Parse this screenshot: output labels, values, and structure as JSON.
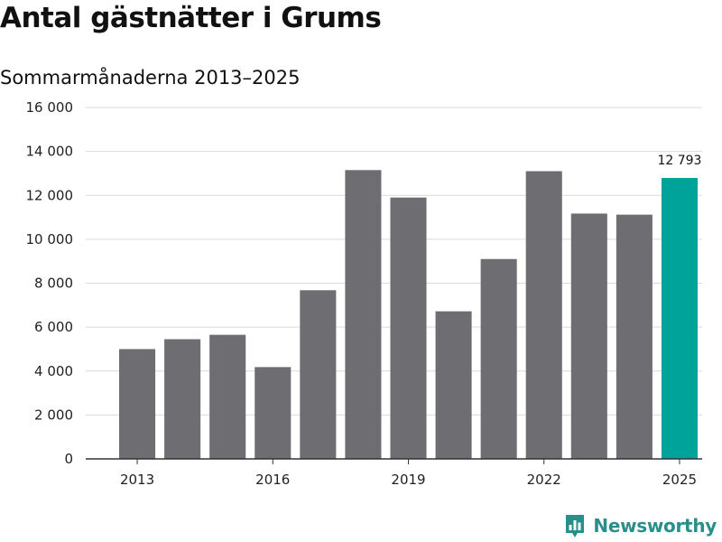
{
  "title": "Antal gästnätter i Grums",
  "subtitle": "Sommarmånaderna 2013–2025",
  "brand": "Newsworthy",
  "colors": {
    "bar": "#6e6d72",
    "highlight": "#00a39a",
    "grid": "#d9d9d9",
    "axis": "#333333",
    "brand": "#2a8f8a"
  },
  "chart_data": {
    "type": "bar",
    "title": "Antal gästnätter i Grums",
    "subtitle": "Sommarmånaderna 2013–2025",
    "categories": [
      "2013",
      "2014",
      "2015",
      "2016",
      "2017",
      "2018",
      "2019",
      "2020",
      "2021",
      "2022",
      "2023",
      "2024",
      "2025"
    ],
    "values": [
      5000,
      5450,
      5650,
      4180,
      7680,
      13150,
      11900,
      6720,
      9100,
      13100,
      11170,
      11120,
      12793
    ],
    "highlight_index": 12,
    "highlight_label": "12 793",
    "x_tick_labels": [
      "2013",
      "2016",
      "2019",
      "2022",
      "2025"
    ],
    "y_tick_labels": [
      "0",
      "2 000",
      "4 000",
      "6 000",
      "8 000",
      "10 000",
      "12 000",
      "14 000",
      "16 000"
    ],
    "y_ticks": [
      0,
      2000,
      4000,
      6000,
      8000,
      10000,
      12000,
      14000,
      16000
    ],
    "ylim": [
      0,
      16000
    ],
    "grid": true,
    "legend": "none"
  }
}
